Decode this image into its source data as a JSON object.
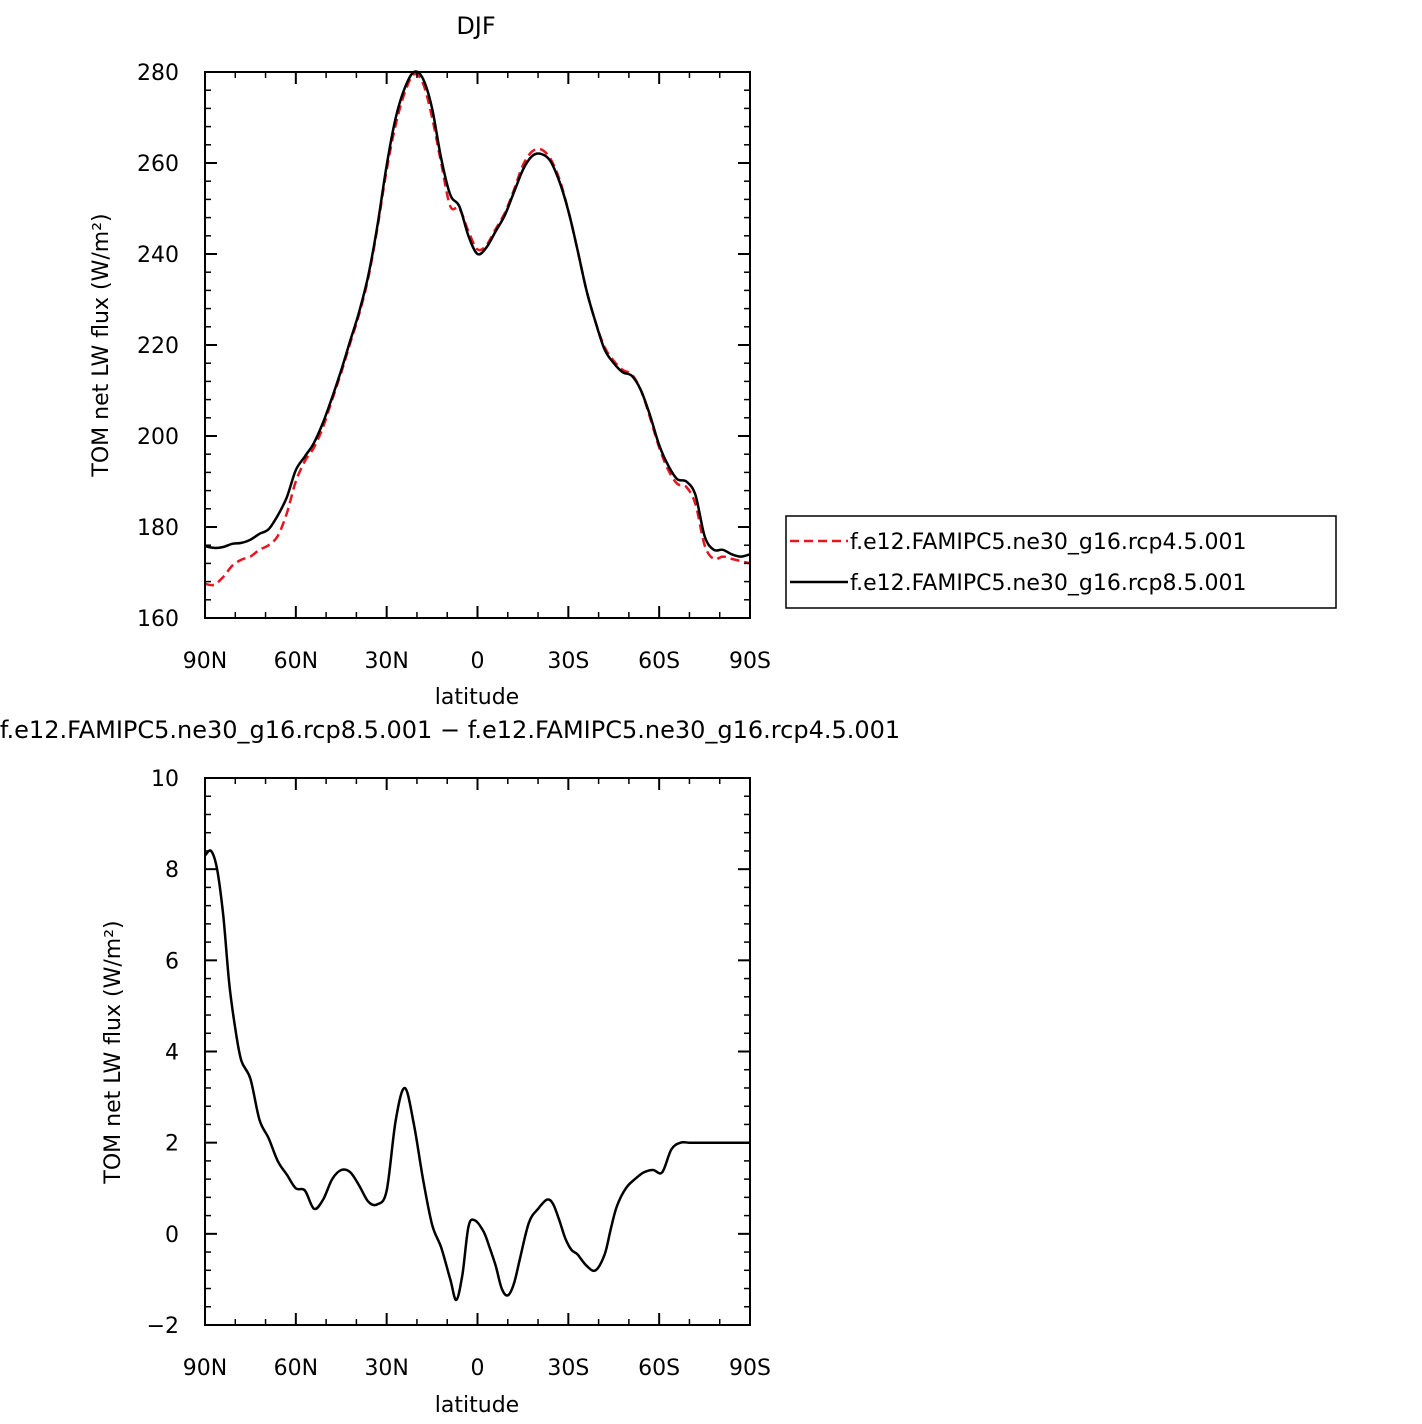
{
  "chart_data": [
    {
      "type": "line",
      "title": "DJF",
      "xlabel": "latitude",
      "ylabel": "TOM net LW flux (W/m²)",
      "xlim": [
        90,
        -90
      ],
      "ylim": [
        160,
        280
      ],
      "x_tick_values": [
        90,
        60,
        30,
        0,
        -30,
        -60,
        -90
      ],
      "x_tick_labels": [
        "90N",
        "60N",
        "30N",
        "0",
        "30S",
        "60S",
        "90S"
      ],
      "y_tick_values": [
        160,
        180,
        200,
        220,
        240,
        260,
        280
      ],
      "y_tick_labels": [
        "160",
        "180",
        "200",
        "220",
        "240",
        "260",
        "280"
      ],
      "grid": false,
      "legend_position": "right",
      "x": [
        90,
        87,
        84,
        81,
        78,
        75,
        72,
        69,
        66,
        63,
        60,
        57,
        54,
        51,
        48,
        45,
        42,
        39,
        36,
        33,
        30,
        27,
        24,
        21,
        18,
        15,
        12,
        9,
        6,
        3,
        0,
        -3,
        -6,
        -9,
        -12,
        -15,
        -18,
        -21,
        -24,
        -27,
        -30,
        -33,
        -36,
        -39,
        -42,
        -45,
        -48,
        -51,
        -54,
        -57,
        -60,
        -63,
        -66,
        -69,
        -72,
        -75,
        -78,
        -81,
        -84,
        -87,
        -90
      ],
      "series": [
        {
          "name": "f.e12.FAMIPC5.ne30_g16.rcp4.5.001",
          "color": "#e8141e",
          "dash": "dashed",
          "values": [
            167.5,
            167.3,
            169.0,
            171.5,
            172.8,
            173.5,
            175.0,
            176.0,
            178.0,
            183.0,
            190.0,
            194.5,
            197.5,
            202.0,
            208.0,
            214.0,
            220.5,
            227.0,
            235.0,
            246.0,
            258.5,
            268.5,
            275.5,
            279.5,
            277.5,
            270.0,
            260.0,
            250.5,
            250.0,
            245.0,
            241.0,
            242.0,
            245.5,
            249.0,
            254.0,
            259.5,
            262.5,
            263.0,
            261.0,
            256.5,
            249.5,
            241.0,
            232.0,
            225.0,
            219.5,
            216.5,
            214.5,
            213.5,
            210.0,
            204.0,
            197.5,
            192.5,
            189.5,
            188.8,
            185.0,
            176.0,
            173.0,
            173.5,
            173.0,
            172.5,
            172.0
          ]
        },
        {
          "name": "f.e12.FAMIPC5.ne30_g16.rcp8.5.001",
          "color": "#000000",
          "dash": "solid",
          "values": [
            175.8,
            175.4,
            175.6,
            176.3,
            176.5,
            177.2,
            178.5,
            179.5,
            182.5,
            186.5,
            192.5,
            195.5,
            198.5,
            203.0,
            208.5,
            214.5,
            221.0,
            227.5,
            235.5,
            246.5,
            259.5,
            270.0,
            276.5,
            280.0,
            278.5,
            272.0,
            261.0,
            253.0,
            250.5,
            244.0,
            240.0,
            241.5,
            245.0,
            248.5,
            253.5,
            258.5,
            261.5,
            262.0,
            260.5,
            256.0,
            249.5,
            241.0,
            232.0,
            225.0,
            219.0,
            216.0,
            214.0,
            213.2,
            210.0,
            204.5,
            198.0,
            193.5,
            190.5,
            190.0,
            187.0,
            178.0,
            175.0,
            175.0,
            174.0,
            173.5,
            174.0
          ]
        }
      ]
    },
    {
      "type": "line",
      "title": "f.e12.FAMIPC5.ne30_g16.rcp8.5.001 − f.e12.FAMIPC5.ne30_g16.rcp4.5.001",
      "xlabel": "latitude",
      "ylabel": "TOM net LW flux (W/m²)",
      "xlim": [
        90,
        -90
      ],
      "ylim": [
        -2,
        10
      ],
      "x_tick_values": [
        90,
        60,
        30,
        0,
        -30,
        -60,
        -90
      ],
      "x_tick_labels": [
        "90N",
        "60N",
        "30N",
        "0",
        "30S",
        "60S",
        "90S"
      ],
      "y_tick_values": [
        -2,
        0,
        2,
        4,
        6,
        8,
        10
      ],
      "y_tick_labels": [
        "−2",
        "0",
        "2",
        "4",
        "6",
        "8",
        "10"
      ],
      "grid": false,
      "x": [
        90,
        88,
        86,
        84,
        82,
        80,
        78,
        75,
        72,
        69,
        66,
        63,
        60,
        57,
        54,
        51,
        48,
        45,
        42,
        39,
        36,
        33,
        30,
        27,
        24,
        21,
        18,
        15,
        12,
        9,
        7,
        5,
        3,
        1,
        -2,
        -4,
        -6,
        -8,
        -10,
        -12,
        -14,
        -17,
        -20,
        -23,
        -25,
        -27,
        -29,
        -31,
        -33,
        -36,
        -39,
        -42,
        -44,
        -46,
        -49,
        -52,
        -55,
        -58,
        -61,
        -64,
        -67,
        -70,
        -73,
        -76,
        -79,
        -82,
        -84,
        -86,
        -88,
        -90
      ],
      "series": [
        {
          "name": "",
          "color": "#000000",
          "dash": "solid",
          "values": [
            8.3,
            8.4,
            8.0,
            7.0,
            5.5,
            4.5,
            3.8,
            3.4,
            2.5,
            2.1,
            1.6,
            1.3,
            1.0,
            0.95,
            0.55,
            0.75,
            1.2,
            1.4,
            1.35,
            1.05,
            0.7,
            0.65,
            0.95,
            2.5,
            3.2,
            2.4,
            1.2,
            0.2,
            -0.3,
            -1.0,
            -1.45,
            -0.9,
            0.15,
            0.3,
            0.05,
            -0.3,
            -0.7,
            -1.2,
            -1.35,
            -1.1,
            -0.55,
            0.25,
            0.55,
            0.75,
            0.65,
            0.3,
            -0.1,
            -0.35,
            -0.45,
            -0.7,
            -0.8,
            -0.45,
            0.1,
            0.6,
            1.0,
            1.2,
            1.35,
            1.4,
            1.35,
            1.85,
            2.0,
            2.0,
            2.0,
            2.0,
            2.0,
            2.0,
            2.0,
            2.0,
            2.0,
            2.0
          ]
        }
      ]
    }
  ]
}
